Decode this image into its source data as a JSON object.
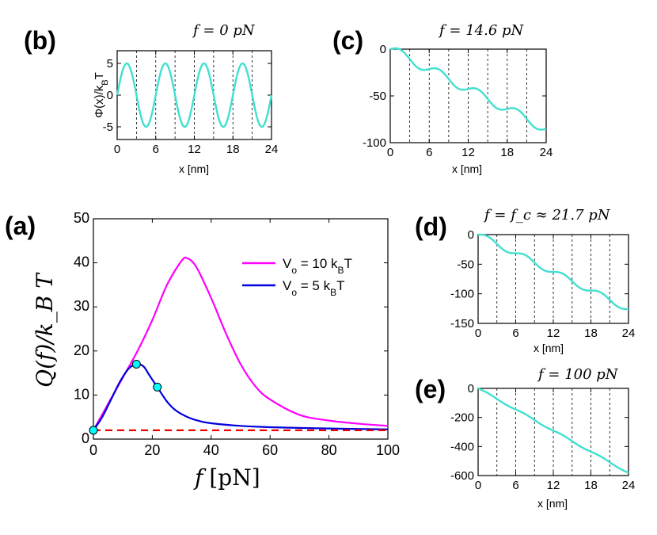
{
  "colors": {
    "potential": "#40e0d0",
    "v10": "#ff00ff",
    "v5": "#0000dd",
    "baseline": "#ee0000",
    "marker": "#00ffff"
  },
  "chart_data": [
    {
      "id": "a",
      "panel_label": "(a)",
      "type": "line",
      "xlabel": "f",
      "xlabel_unit": "[pN]",
      "ylabel": "Q(f)/k_B T",
      "xlim": [
        0,
        100
      ],
      "ylim": [
        0,
        50
      ],
      "xticks": [
        0,
        20,
        40,
        60,
        80,
        100
      ],
      "yticks": [
        0,
        10,
        20,
        30,
        40,
        50
      ],
      "legend": {
        "position": "top-right",
        "entries": [
          {
            "label_main": "V",
            "label_sub": "o",
            "label_mid": " = 10 k",
            "label_sub2": "B",
            "label_end": "T",
            "series": "v10"
          },
          {
            "label_main": "V",
            "label_sub": "o",
            "label_mid": " = 5 k",
            "label_sub2": "B",
            "label_end": "T",
            "series": "v5"
          }
        ]
      },
      "series": [
        {
          "name": "V_o = 10 k_B T",
          "key": "v10",
          "x": [
            0,
            5,
            10,
            15,
            20,
            25,
            30,
            32,
            35,
            40,
            45,
            50,
            55,
            60,
            70,
            80,
            90,
            100
          ],
          "y": [
            2,
            8,
            14,
            20,
            27,
            35,
            40.5,
            41,
            39,
            32,
            24,
            17,
            12,
            9,
            5.5,
            4.2,
            3.5,
            3.0
          ]
        },
        {
          "name": "V_o = 5 k_B T",
          "key": "v5",
          "x": [
            0,
            3,
            6,
            9,
            12,
            14.6,
            17,
            19,
            21.7,
            25,
            28,
            32,
            36,
            40,
            50,
            60,
            80,
            100
          ],
          "y": [
            2,
            5,
            9,
            13,
            16,
            17,
            16.5,
            14.5,
            11.8,
            8.5,
            6.5,
            5,
            4.1,
            3.6,
            3.0,
            2.7,
            2.4,
            2.2
          ]
        },
        {
          "name": "baseline",
          "key": "baseline",
          "x": [
            0,
            100
          ],
          "y": [
            2,
            2
          ]
        }
      ],
      "markers": [
        {
          "x": 0,
          "y": 2
        },
        {
          "x": 14.6,
          "y": 17
        },
        {
          "x": 21.7,
          "y": 11.8
        }
      ]
    },
    {
      "id": "b",
      "panel_label": "(b)",
      "title": "f = 0 pN",
      "type": "line",
      "xlabel": "x [nm]",
      "ylabel": "Φ(x)/k_B T",
      "ylabel_main": "Φ(x)/k",
      "ylabel_sub": "B",
      "ylabel_end": "T",
      "xlim": [
        0,
        24
      ],
      "ylim": [
        -7,
        7
      ],
      "xticks": [
        0,
        6,
        12,
        18,
        24
      ],
      "yticks": [
        -5,
        0,
        5
      ],
      "period": 6,
      "amplitude": 5,
      "force_slope": 0,
      "vlines": [
        3,
        6,
        9,
        12,
        15,
        18,
        21
      ]
    },
    {
      "id": "c",
      "panel_label": "(c)",
      "title": "f = 14.6 pN",
      "type": "line",
      "xlabel": "x [nm]",
      "xlim": [
        0,
        24
      ],
      "ylim": [
        -100,
        0
      ],
      "xticks": [
        0,
        6,
        12,
        18,
        24
      ],
      "yticks": [
        -100,
        -50,
        0
      ],
      "period": 6,
      "amplitude": 5,
      "force_slope": -3.55,
      "vlines": [
        3,
        6,
        9,
        12,
        15,
        18,
        21
      ]
    },
    {
      "id": "d",
      "panel_label": "(d)",
      "title": "f = f_c ≈ 21.7 pN",
      "type": "line",
      "xlabel": "x [nm]",
      "xlim": [
        0,
        24
      ],
      "ylim": [
        -150,
        0
      ],
      "xticks": [
        0,
        6,
        12,
        18,
        24
      ],
      "yticks": [
        -150,
        -100,
        -50,
        0
      ],
      "period": 6,
      "amplitude": 5,
      "force_slope": -5.25,
      "vlines": [
        3,
        6,
        9,
        12,
        15,
        18,
        21
      ]
    },
    {
      "id": "e",
      "panel_label": "(e)",
      "title": "f = 100 pN",
      "type": "line",
      "xlabel": "x [nm]",
      "xlim": [
        0,
        24
      ],
      "ylim": [
        -600,
        0
      ],
      "xticks": [
        0,
        6,
        12,
        18,
        24
      ],
      "yticks": [
        -600,
        -400,
        -200,
        0
      ],
      "period": 6,
      "amplitude": 5,
      "force_slope": -24.2,
      "vlines": [
        3,
        6,
        9,
        12,
        15,
        18,
        21
      ]
    }
  ]
}
